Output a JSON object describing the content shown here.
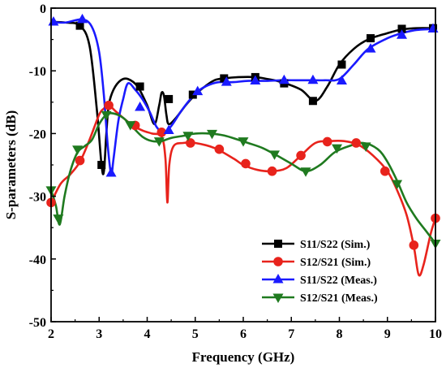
{
  "chart_data": {
    "type": "line",
    "title": "",
    "xlabel": "Frequency (GHz)",
    "ylabel": "S-parameters (dB)",
    "xlim": [
      2,
      10
    ],
    "ylim": [
      -50,
      0
    ],
    "xticks": [
      2,
      3,
      4,
      5,
      6,
      7,
      8,
      9,
      10
    ],
    "yticks": [
      0,
      -10,
      -20,
      -30,
      -40,
      -50
    ],
    "xtick_labels": [
      "2",
      "3",
      "4",
      "5",
      "6",
      "7",
      "8",
      "9",
      "10"
    ],
    "ytick_labels": [
      "0",
      "-10",
      "-20",
      "-30",
      "-40",
      "-50"
    ],
    "grid": false,
    "legend_position": "bottom-right",
    "series": [
      {
        "name": "S11/S22 (Sim.)",
        "color": "#000000",
        "marker": "square",
        "x": [
          2.0,
          2.3,
          2.6,
          2.8,
          2.95,
          3.05,
          3.1,
          3.15,
          3.2,
          3.3,
          3.45,
          3.6,
          3.8,
          4.0,
          4.15,
          4.25,
          4.3,
          4.35,
          4.4,
          4.45,
          4.6,
          4.8,
          5.0,
          5.2,
          5.4,
          5.6,
          5.9,
          6.25,
          6.5,
          6.8,
          7.2,
          7.5,
          7.75,
          8.0,
          8.3,
          8.6,
          9.0,
          9.3,
          9.6,
          10.0
        ],
        "y": [
          -2.2,
          -2.3,
          -2.8,
          -6.0,
          -16.0,
          -25.0,
          -26.0,
          -20.0,
          -15.5,
          -13.0,
          -11.5,
          -11.3,
          -12.5,
          -15.5,
          -18.5,
          -15.5,
          -13.5,
          -14.0,
          -17.0,
          -18.5,
          -17.5,
          -15.5,
          -13.8,
          -12.5,
          -11.5,
          -11.2,
          -11.0,
          -11.0,
          -11.3,
          -11.8,
          -13.0,
          -14.8,
          -12.5,
          -9.0,
          -6.5,
          -5.0,
          -4.0,
          -3.4,
          -3.2,
          -3.2
        ],
        "marker_x": [
          2.6,
          3.05,
          3.85,
          4.45,
          4.95,
          5.6,
          6.25,
          6.85,
          7.45,
          8.05,
          8.65,
          9.3,
          9.95
        ],
        "marker_y": [
          -2.8,
          -25.0,
          -12.5,
          -14.5,
          -13.8,
          -11.2,
          -11.0,
          -12.0,
          -14.8,
          -9.0,
          -4.8,
          -3.3,
          -3.2
        ]
      },
      {
        "name": "S12/S21 (Sim.)",
        "color": "#e8231c",
        "marker": "circle",
        "x": [
          2.0,
          2.2,
          2.4,
          2.6,
          2.8,
          3.0,
          3.1,
          3.2,
          3.35,
          3.5,
          3.7,
          3.9,
          4.1,
          4.3,
          4.38,
          4.42,
          4.46,
          4.55,
          4.75,
          5.0,
          5.4,
          5.8,
          6.0,
          6.3,
          6.6,
          6.9,
          7.2,
          7.5,
          7.8,
          8.1,
          8.4,
          8.7,
          9.0,
          9.2,
          9.4,
          9.55,
          9.65,
          9.75,
          9.9,
          10.0
        ],
        "y": [
          -31.0,
          -28.0,
          -26.5,
          -24.5,
          -21.0,
          -17.0,
          -16.0,
          -15.5,
          -16.5,
          -17.5,
          -18.7,
          -19.5,
          -20.0,
          -20.5,
          -24.0,
          -31.0,
          -25.0,
          -22.0,
          -21.5,
          -21.5,
          -22.3,
          -24.0,
          -25.0,
          -25.8,
          -26.0,
          -25.5,
          -23.5,
          -21.5,
          -21.2,
          -21.2,
          -21.8,
          -23.5,
          -26.0,
          -29.0,
          -33.0,
          -38.0,
          -42.5,
          -41.0,
          -36.0,
          -33.5
        ],
        "marker_x": [
          2.0,
          2.6,
          3.2,
          3.75,
          4.3,
          4.9,
          5.5,
          6.05,
          6.6,
          7.2,
          7.75,
          8.35,
          8.95,
          9.55,
          10.0
        ],
        "marker_y": [
          -31.0,
          -24.3,
          -15.5,
          -18.7,
          -19.8,
          -21.5,
          -22.5,
          -24.8,
          -26.0,
          -23.5,
          -21.3,
          -21.5,
          -26.0,
          -37.8,
          -33.5
        ]
      },
      {
        "name": "S11/S22 (Meas.)",
        "color": "#1a1aff",
        "marker": "triangle-up",
        "x": [
          2.0,
          2.3,
          2.65,
          2.85,
          3.0,
          3.1,
          3.18,
          3.25,
          3.3,
          3.4,
          3.5,
          3.6,
          3.75,
          3.9,
          4.05,
          4.2,
          4.35,
          4.5,
          4.7,
          4.9,
          5.1,
          5.3,
          5.5,
          5.8,
          6.1,
          6.5,
          6.8,
          7.1,
          7.4,
          7.7,
          8.0,
          8.3,
          8.6,
          9.0,
          9.3,
          9.6,
          10.0
        ],
        "y": [
          -2.2,
          -2.3,
          -1.8,
          -3.0,
          -7.0,
          -14.0,
          -22.0,
          -26.5,
          -24.0,
          -18.0,
          -14.5,
          -12.0,
          -13.0,
          -14.5,
          -16.5,
          -19.0,
          -19.8,
          -18.8,
          -16.5,
          -14.5,
          -13.0,
          -12.2,
          -11.8,
          -11.8,
          -11.6,
          -11.6,
          -11.5,
          -11.5,
          -11.5,
          -11.5,
          -11.3,
          -9.0,
          -6.5,
          -4.8,
          -4.0,
          -3.5,
          -3.3
        ],
        "marker_x": [
          2.05,
          2.65,
          3.25,
          3.85,
          4.45,
          5.05,
          5.65,
          6.25,
          6.85,
          7.45,
          8.05,
          8.65,
          9.3,
          9.95
        ],
        "marker_y": [
          -2.2,
          -1.8,
          -26.3,
          -15.8,
          -19.5,
          -13.3,
          -11.8,
          -11.6,
          -11.5,
          -11.5,
          -11.6,
          -6.5,
          -4.3,
          -3.3
        ]
      },
      {
        "name": "S12/S21 (Meas.)",
        "color": "#1f7a1f",
        "marker": "triangle-down",
        "x": [
          2.0,
          2.1,
          2.18,
          2.28,
          2.4,
          2.55,
          2.7,
          2.85,
          3.0,
          3.15,
          3.3,
          3.5,
          3.7,
          3.9,
          4.1,
          4.3,
          4.5,
          4.8,
          5.0,
          5.3,
          5.6,
          5.9,
          6.1,
          6.4,
          6.7,
          7.0,
          7.3,
          7.6,
          7.9,
          8.2,
          8.5,
          8.8,
          9.0,
          9.2,
          9.4,
          9.6,
          9.8,
          10.0
        ],
        "y": [
          -29.0,
          -31.5,
          -34.5,
          -30.0,
          -26.0,
          -23.0,
          -22.0,
          -21.0,
          -18.5,
          -17.0,
          -16.8,
          -17.5,
          -19.0,
          -20.5,
          -21.2,
          -21.2,
          -20.7,
          -20.3,
          -20.0,
          -20.0,
          -20.3,
          -21.0,
          -21.5,
          -22.3,
          -23.5,
          -24.8,
          -26.0,
          -25.0,
          -23.0,
          -22.0,
          -21.5,
          -22.5,
          -24.5,
          -27.5,
          -31.0,
          -33.5,
          -35.5,
          -37.5
        ],
        "marker_x": [
          2.0,
          2.15,
          2.55,
          3.15,
          3.65,
          4.25,
          4.85,
          5.35,
          6.0,
          6.65,
          7.3,
          7.95,
          8.55,
          9.2,
          10.0
        ],
        "marker_y": [
          -29.0,
          -33.5,
          -22.5,
          -17.0,
          -18.6,
          -21.2,
          -20.3,
          -20.0,
          -21.2,
          -23.3,
          -26.0,
          -22.3,
          -22.0,
          -28.0,
          -37.5
        ]
      }
    ]
  }
}
